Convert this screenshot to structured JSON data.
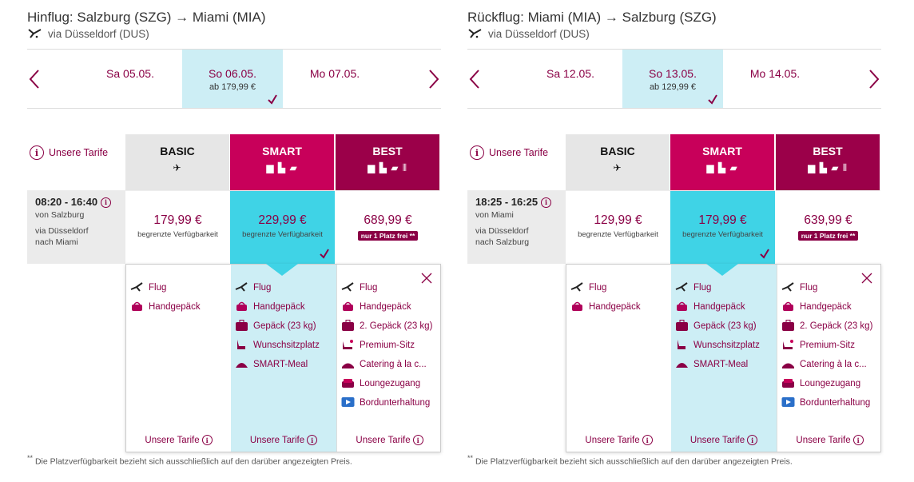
{
  "colors": {
    "brand": "#8a0045",
    "smart": "#c8005a",
    "best": "#9b0049",
    "selected": "#3fd3e6",
    "light_selected": "#cdeef5"
  },
  "panels": [
    {
      "title": "Hinflug: Salzburg (SZG) → Miami (MIA)",
      "via": "via Düsseldorf (DUS)",
      "days": [
        {
          "label": "Sa 05.05.",
          "price": ""
        },
        {
          "label": "So 06.05.",
          "price": "ab 179,99 €"
        },
        {
          "label": "Mo 07.05.",
          "price": ""
        }
      ],
      "tarife_link": "Unsere Tarife",
      "flight": {
        "time": "08:20 - 16:40",
        "from": "von Salzburg",
        "via": "via Düsseldorf",
        "to": "nach Miami"
      },
      "prices": {
        "basic": {
          "amount": "179,99 €",
          "avail": "begrenzte Verfügbarkeit"
        },
        "smart": {
          "amount": "229,99 €",
          "avail": "begrenzte Verfügbarkeit"
        },
        "best": {
          "amount": "689,99 €",
          "badge": "nur 1 Platz frei **"
        }
      }
    },
    {
      "title": "Rückflug: Miami (MIA) → Salzburg (SZG)",
      "via": "via Düsseldorf (DUS)",
      "days": [
        {
          "label": "Sa 12.05.",
          "price": ""
        },
        {
          "label": "So 13.05.",
          "price": "ab 129,99 €"
        },
        {
          "label": "Mo 14.05.",
          "price": ""
        }
      ],
      "tarife_link": "Unsere Tarife",
      "flight": {
        "time": "18:25 - 16:25",
        "from": "von Miami",
        "via": "via Düsseldorf",
        "to": "nach Salzburg"
      },
      "prices": {
        "basic": {
          "amount": "129,99 €",
          "avail": "begrenzte Verfügbarkeit"
        },
        "smart": {
          "amount": "179,99 €",
          "avail": "begrenzte Verfügbarkeit"
        },
        "best": {
          "amount": "639,99 €",
          "badge": "nur 1 Platz frei **"
        }
      }
    }
  ],
  "tariffs": {
    "basic": {
      "name": "BASIC",
      "icons": "✈",
      "features": [
        {
          "icon": "plane-icon",
          "label": "Flug"
        },
        {
          "icon": "handbag-icon",
          "label": "Handgepäck"
        }
      ]
    },
    "smart": {
      "name": "SMART",
      "icons": "▆ ▙ ▰",
      "features": [
        {
          "icon": "plane-icon",
          "label": "Flug"
        },
        {
          "icon": "handbag-icon",
          "label": "Handgepäck"
        },
        {
          "icon": "suitcase-icon",
          "label": "Gepäck (23 kg)"
        },
        {
          "icon": "seat-icon",
          "label": "Wunschsitzplatz"
        },
        {
          "icon": "meal-icon",
          "label": "SMART-Meal"
        }
      ]
    },
    "best": {
      "name": "BEST",
      "icons": "▆ ▙ ▰ ⫴",
      "features": [
        {
          "icon": "plane-icon",
          "label": "Flug"
        },
        {
          "icon": "handbag-icon",
          "label": "Handgepäck"
        },
        {
          "icon": "suitcase-icon",
          "label": "2. Gepäck (23 kg)"
        },
        {
          "icon": "premium-seat-icon",
          "label": "Premium-Sitz"
        },
        {
          "icon": "catering-icon",
          "label": "Catering à la c..."
        },
        {
          "icon": "lounge-icon",
          "label": "Loungezugang"
        },
        {
          "icon": "entertainment-icon",
          "label": "Bordunterhaltung"
        }
      ]
    }
  },
  "detail_footer": "Unsere Tarife",
  "footnote_mark": "**",
  "footnote": "Die Platzverfügbarkeit bezieht sich ausschließlich auf den darüber angezeigten Preis."
}
